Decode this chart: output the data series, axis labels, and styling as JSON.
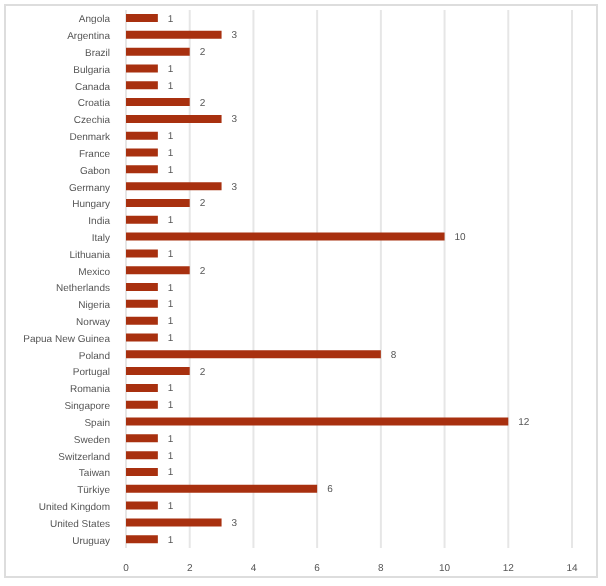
{
  "chart_data": {
    "type": "bar",
    "orientation": "horizontal",
    "categories": [
      "Angola",
      "Argentina",
      "Brazil",
      "Bulgaria",
      "Canada",
      "Croatia",
      "Czechia",
      "Denmark",
      "France",
      "Gabon",
      "Germany",
      "Hungary",
      "India",
      "Italy",
      "Lithuania",
      "Mexico",
      "Netherlands",
      "Nigeria",
      "Norway",
      "Papua New Guinea",
      "Poland",
      "Portugal",
      "Romania",
      "Singapore",
      "Spain",
      "Sweden",
      "Switzerland",
      "Taiwan",
      "Türkiye",
      "United Kingdom",
      "United States",
      "Uruguay"
    ],
    "values": [
      1,
      3,
      2,
      1,
      1,
      2,
      3,
      1,
      1,
      1,
      3,
      2,
      1,
      10,
      1,
      2,
      1,
      1,
      1,
      1,
      8,
      2,
      1,
      1,
      12,
      1,
      1,
      1,
      6,
      1,
      3,
      1
    ],
    "color": "#a8300f",
    "xlim": [
      0,
      14
    ],
    "xticks": [
      0,
      2,
      4,
      6,
      8,
      10,
      12,
      14
    ],
    "grid": "x",
    "data_labels": true
  }
}
